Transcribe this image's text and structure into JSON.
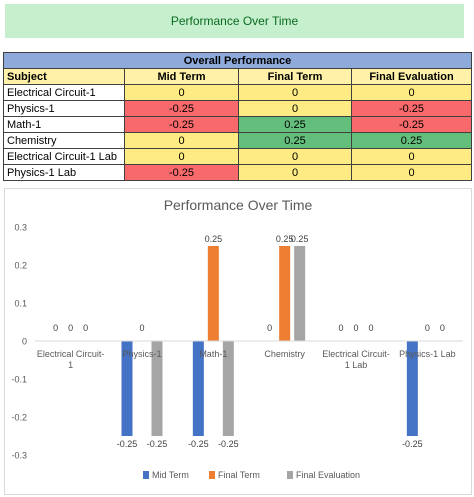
{
  "banner": {
    "title": "Performance Over Time"
  },
  "table": {
    "title": "Overall Performance",
    "headers": [
      "Subject",
      "Mid Term",
      "Final Term",
      "Final Evaluation"
    ],
    "rows": [
      {
        "subject": "Electrical Circuit-1",
        "values": [
          "0",
          "0",
          "0"
        ],
        "fills": [
          "y",
          "y",
          "y"
        ]
      },
      {
        "subject": "Physics-1",
        "values": [
          "-0.25",
          "0",
          "-0.25"
        ],
        "fills": [
          "r",
          "y",
          "r"
        ]
      },
      {
        "subject": "Math-1",
        "values": [
          "-0.25",
          "0.25",
          "-0.25"
        ],
        "fills": [
          "r",
          "g",
          "r"
        ]
      },
      {
        "subject": "Chemistry",
        "values": [
          "0",
          "0.25",
          "0.25"
        ],
        "fills": [
          "y",
          "g",
          "g"
        ]
      },
      {
        "subject": "Electrical Circuit-1 Lab",
        "values": [
          "0",
          "0",
          "0"
        ],
        "fills": [
          "y",
          "y",
          "y"
        ]
      },
      {
        "subject": "Physics-1 Lab",
        "values": [
          "-0.25",
          "0",
          "0"
        ],
        "fills": [
          "r",
          "y",
          "y"
        ]
      }
    ]
  },
  "chart_data": {
    "type": "bar",
    "title": "Performance Over Time",
    "categories": [
      "Electrical Circuit-1",
      "Physics-1",
      "Math-1",
      "Chemistry",
      "Electrical Circuit-1 Lab",
      "Physics-1 Lab"
    ],
    "series": [
      {
        "name": "Mid Term",
        "color": "#4472c4",
        "values": [
          0,
          -0.25,
          -0.25,
          0,
          0,
          -0.25
        ]
      },
      {
        "name": "Final Term",
        "color": "#ed7d31",
        "values": [
          0,
          0,
          0.25,
          0.25,
          0,
          0
        ]
      },
      {
        "name": "Final Evaluation",
        "color": "#a5a5a5",
        "values": [
          0,
          -0.25,
          -0.25,
          0.25,
          0,
          0
        ]
      }
    ],
    "ylim": [
      -0.3,
      0.3
    ],
    "yticks": [
      "0.3",
      "0.2",
      "0.1",
      "0",
      "-0.1",
      "-0.2",
      "-0.3"
    ],
    "grid": false,
    "legend": "bottom"
  }
}
